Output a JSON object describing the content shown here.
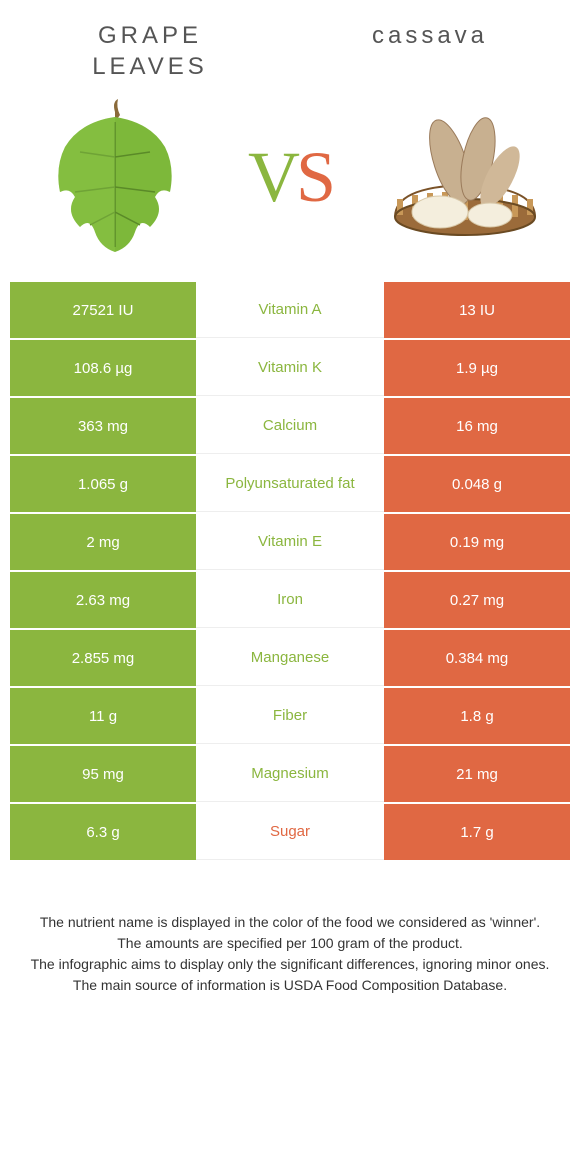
{
  "colors": {
    "green": "#8bb63f",
    "orange": "#e06843",
    "leaf_green": "#7db83a",
    "leaf_dark": "#5a8a28",
    "cassava_brown": "#b89a7a",
    "cassava_light": "#e8dcc8",
    "basket": "#9b6b3a",
    "text": "#555555"
  },
  "foods": {
    "left": "GRAPE LEAVES",
    "right": "cassava"
  },
  "vs": {
    "v": "V",
    "s": "S"
  },
  "rows": [
    {
      "left": "27521 IU",
      "label": "Vitamin A",
      "right": "13 IU",
      "winner": "left"
    },
    {
      "left": "108.6 µg",
      "label": "Vitamin K",
      "right": "1.9 µg",
      "winner": "left"
    },
    {
      "left": "363 mg",
      "label": "Calcium",
      "right": "16 mg",
      "winner": "left"
    },
    {
      "left": "1.065 g",
      "label": "Polyunsaturated fat",
      "right": "0.048 g",
      "winner": "left"
    },
    {
      "left": "2 mg",
      "label": "Vitamin E",
      "right": "0.19 mg",
      "winner": "left"
    },
    {
      "left": "2.63 mg",
      "label": "Iron",
      "right": "0.27 mg",
      "winner": "left"
    },
    {
      "left": "2.855 mg",
      "label": "Manganese",
      "right": "0.384 mg",
      "winner": "left"
    },
    {
      "left": "11 g",
      "label": "Fiber",
      "right": "1.8 g",
      "winner": "left"
    },
    {
      "left": "95 mg",
      "label": "Magnesium",
      "right": "21 mg",
      "winner": "left"
    },
    {
      "left": "6.3 g",
      "label": "Sugar",
      "right": "1.7 g",
      "winner": "right"
    }
  ],
  "footer": [
    "The nutrient name is displayed in the color of the food we considered as 'winner'.",
    "The amounts are specified per 100 gram of the product.",
    "The infographic aims to display only the significant differences, ignoring minor ones.",
    "The main source of information is USDA Food Composition Database."
  ]
}
